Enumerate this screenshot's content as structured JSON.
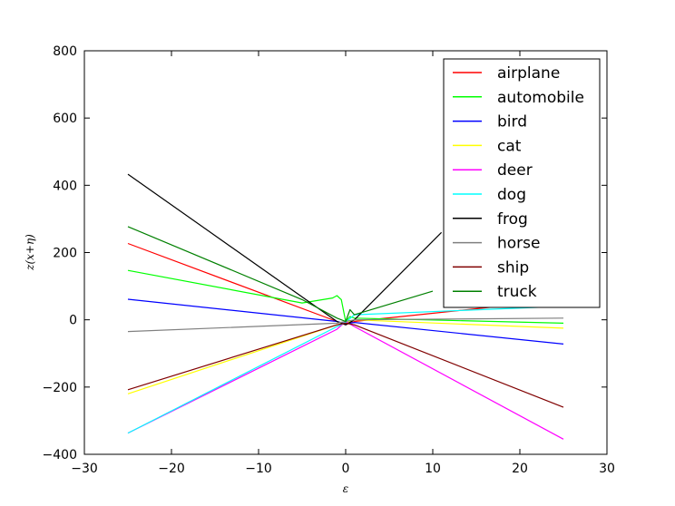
{
  "chart_data": {
    "type": "line",
    "title": "",
    "xlabel": "ε",
    "ylabel": "z(x+η)",
    "xlim": [
      -30,
      30
    ],
    "ylim": [
      -400,
      800
    ],
    "xticks": [
      -30,
      -20,
      -10,
      0,
      10,
      20,
      30
    ],
    "yticks": [
      -400,
      -200,
      0,
      200,
      400,
      600,
      800
    ],
    "xtick_labels": [
      "−30",
      "−20",
      "−10",
      "0",
      "10",
      "20",
      "30"
    ],
    "ytick_labels": [
      "−400",
      "−200",
      "0",
      "200",
      "400",
      "600",
      "800"
    ],
    "grid": false,
    "legend_position": "top-right",
    "series": [
      {
        "name": "airplane",
        "color": "#ff0000",
        "points": [
          [
            -25,
            227
          ],
          [
            -1,
            -5
          ],
          [
            0,
            -15
          ],
          [
            1,
            -5
          ],
          [
            25,
            60
          ]
        ]
      },
      {
        "name": "automobile",
        "color": "#00ff00",
        "points": [
          [
            -25,
            147
          ],
          [
            -5,
            50
          ],
          [
            -1.5,
            65
          ],
          [
            -1,
            72
          ],
          [
            -0.5,
            60
          ],
          [
            0,
            -5
          ],
          [
            0.5,
            10
          ],
          [
            1,
            5
          ],
          [
            25,
            -10
          ]
        ]
      },
      {
        "name": "bird",
        "color": "#0000ff",
        "points": [
          [
            -25,
            61
          ],
          [
            -1,
            -5
          ],
          [
            0,
            -12
          ],
          [
            1,
            -8
          ],
          [
            25,
            -72
          ]
        ]
      },
      {
        "name": "cat",
        "color": "#ffff00",
        "points": [
          [
            -25,
            -220
          ],
          [
            -1,
            -15
          ],
          [
            0,
            -10
          ],
          [
            1,
            0
          ],
          [
            25,
            -25
          ]
        ]
      },
      {
        "name": "deer",
        "color": "#ff00ff",
        "points": [
          [
            -25,
            -337
          ],
          [
            -1,
            -28
          ],
          [
            0,
            -5
          ],
          [
            1,
            -20
          ],
          [
            25,
            -355
          ]
        ]
      },
      {
        "name": "dog",
        "color": "#00ffff",
        "points": [
          [
            -25,
            -337
          ],
          [
            -1,
            -20
          ],
          [
            0,
            -8
          ],
          [
            1,
            15
          ],
          [
            25,
            40
          ]
        ]
      },
      {
        "name": "frog",
        "color": "#000000",
        "points": [
          [
            -25,
            433
          ],
          [
            -1,
            -5
          ],
          [
            0,
            -15
          ],
          [
            1,
            0
          ],
          [
            11,
            260
          ]
        ]
      },
      {
        "name": "horse",
        "color": "#808080",
        "points": [
          [
            -25,
            -35
          ],
          [
            -1,
            -10
          ],
          [
            0,
            -5
          ],
          [
            1,
            0
          ],
          [
            25,
            5
          ]
        ]
      },
      {
        "name": "ship",
        "color": "#800000",
        "points": [
          [
            -25,
            -208
          ],
          [
            -1,
            -15
          ],
          [
            0,
            -10
          ],
          [
            1,
            -15
          ],
          [
            25,
            -260
          ]
        ]
      },
      {
        "name": "truck",
        "color": "#008000",
        "points": [
          [
            -25,
            277
          ],
          [
            -5,
            60
          ],
          [
            -1,
            5
          ],
          [
            0,
            -5
          ],
          [
            0.5,
            30
          ],
          [
            1,
            15
          ],
          [
            10,
            85
          ]
        ]
      }
    ]
  }
}
